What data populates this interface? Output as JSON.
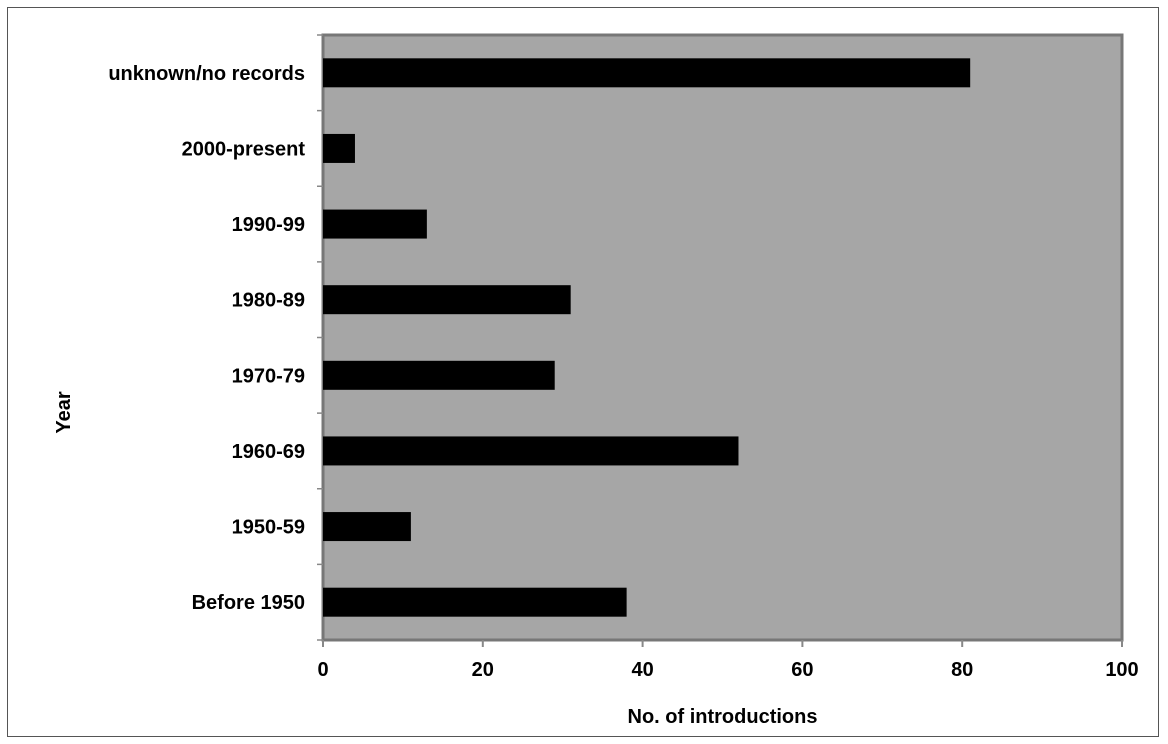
{
  "chart_data": {
    "type": "bar",
    "orientation": "horizontal",
    "title": "",
    "xlabel": "No. of introductions",
    "ylabel": "Year",
    "xlim": [
      0,
      100
    ],
    "x_ticks": [
      0,
      20,
      40,
      60,
      80,
      100
    ],
    "categories": [
      "Before 1950",
      "1950-59",
      "1960-69",
      "1970-79",
      "1980-89",
      "1990-99",
      "2000-present",
      "unknown/no records"
    ],
    "values": [
      38,
      11,
      52,
      29,
      31,
      13,
      4,
      81
    ],
    "grid": false,
    "legend": "none",
    "colors": {
      "plot_background": "#a6a6a6",
      "bar": "#000000",
      "plot_border": "#777777",
      "axis": "#888888"
    }
  }
}
